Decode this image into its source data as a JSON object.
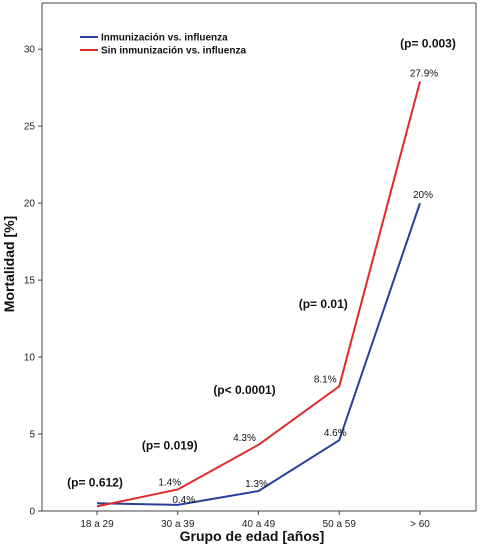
{
  "chart_data": {
    "type": "line",
    "xlabel": "Grupo de edad [años]",
    "ylabel": "Mortalidad [%]",
    "ylim": [
      0,
      33
    ],
    "yticks": [
      0,
      5,
      10,
      15,
      20,
      25,
      30
    ],
    "categories": [
      "18 a 29",
      "30 a 39",
      "40 a 49",
      "50 a 59",
      "> 60"
    ],
    "legend_position": "top-left",
    "grid": false,
    "series": [
      {
        "name": "Inmunización vs. influenza",
        "color": "#2a3f9a",
        "values": [
          0.5,
          0.4,
          1.3,
          4.6,
          20.0
        ],
        "labels": [
          "",
          "0.4%",
          "1.3%",
          "4.6%",
          "20%"
        ]
      },
      {
        "name": "Sin inmunización vs. influenza",
        "color": "#e02b2b",
        "values": [
          0.3,
          1.4,
          4.3,
          8.1,
          27.9
        ],
        "labels": [
          "",
          "1.4%",
          "4.3%",
          "8.1%",
          "27.9%"
        ]
      }
    ],
    "annotations": [
      {
        "text": "(p= 0.612)",
        "category": 0,
        "y": 1.6
      },
      {
        "text": "(p= 0.019)",
        "category": 1,
        "y": 4.0
      },
      {
        "text": "(p< 0.0001)",
        "category": 2,
        "y": 7.6
      },
      {
        "text": "(p= 0.01)",
        "category": 3,
        "y": 13.2
      },
      {
        "text": "(p= 0.003)",
        "category": 4,
        "y": 30.1
      }
    ]
  }
}
